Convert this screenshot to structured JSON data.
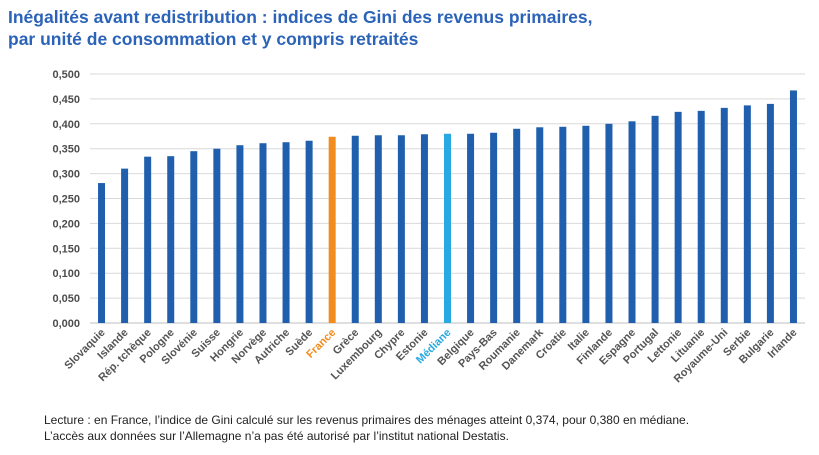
{
  "title_line1": "Inégalités avant redistribution : indices de Gini des revenus primaires,",
  "title_line2": "par unité de consommation et y compris retraités",
  "note_line1": "Lecture : en France, l’indice de Gini calculé sur les revenus primaires des ménages atteint 0,374, pour 0,380 en médiane.",
  "note_line2": "L’accès aux données sur l’Allemagne n’a pas été autorisé par l’institut national Destatis.",
  "colors": {
    "title": "#2b63b8",
    "bar": "#1f5fae",
    "highlight_france": "#f28c1e",
    "highlight_median": "#29a9e1",
    "label": "#555555",
    "grid": "#d9d9d9"
  },
  "chart_data": {
    "type": "bar",
    "title": "Inégalités avant redistribution : indices de Gini des revenus primaires, par unité de consommation et y compris retraités",
    "xlabel": "",
    "ylabel": "",
    "ylim": [
      0,
      0.5
    ],
    "yticks": [
      "0,000",
      "0,050",
      "0,100",
      "0,150",
      "0,200",
      "0,250",
      "0,300",
      "0,350",
      "0,400",
      "0,450",
      "0,500"
    ],
    "grid": true,
    "categories": [
      "Slovaquie",
      "Islande",
      "Rép. tchèque",
      "Pologne",
      "Slovénie",
      "Suisse",
      "Hongrie",
      "Norvège",
      "Autriche",
      "Suède",
      "France",
      "Grèce",
      "Luxembourg",
      "Chypre",
      "Estonie",
      "Médiane",
      "Belgique",
      "Pays-Bas",
      "Roumanie",
      "Danemark",
      "Croatie",
      "Italie",
      "Finlande",
      "Espagne",
      "Portugal",
      "Lettonie",
      "Lituanie",
      "Royaume-Uni",
      "Serbie",
      "Bulgarie",
      "Irlande"
    ],
    "values": [
      0.281,
      0.31,
      0.334,
      0.335,
      0.345,
      0.35,
      0.357,
      0.361,
      0.363,
      0.366,
      0.374,
      0.376,
      0.377,
      0.377,
      0.379,
      0.38,
      0.38,
      0.382,
      0.39,
      0.393,
      0.394,
      0.396,
      0.4,
      0.405,
      0.416,
      0.424,
      0.426,
      0.432,
      0.437,
      0.44,
      0.467
    ],
    "highlights": {
      "France": "highlight_france",
      "Médiane": "highlight_median"
    }
  }
}
